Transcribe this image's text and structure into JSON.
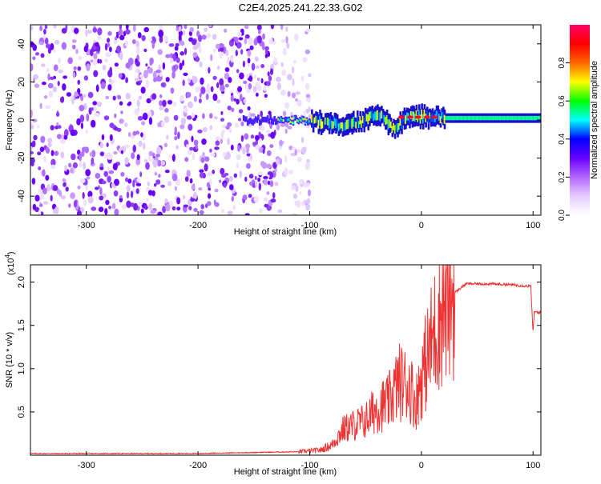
{
  "figure": {
    "title": "C2E4.2025.241.22.33.G02"
  },
  "chart_data": [
    {
      "type": "heatmap",
      "title": "C2E4.2025.241.22.33.G02",
      "xlabel": "Height of straight line (km)",
      "ylabel": "Frequency (Hz)",
      "xlim": [
        -350,
        107
      ],
      "ylim": [
        -50,
        50
      ],
      "x_ticks": [
        -300,
        -200,
        -100,
        0,
        100
      ],
      "y_ticks": [
        -40,
        -20,
        0,
        20,
        40
      ],
      "colorbar": {
        "label": "Normalized spectral amplitude",
        "range": [
          0.0,
          1.0
        ],
        "ticks": [
          "0.0",
          "0.2",
          "0.4",
          "0.6",
          "0.8"
        ],
        "colors": [
          "#ffffff",
          "#e6ccff",
          "#b366ff",
          "#6600ff",
          "#0000ff",
          "#00ffff",
          "#00ff00",
          "#ffff00",
          "#ff6600",
          "#ff0000",
          "#ff0066"
        ]
      },
      "regions": [
        {
          "x_range": [
            -350,
            -130
          ],
          "description": "broadband purple noise",
          "amplitude": 0.08
        },
        {
          "x_range": [
            -130,
            -100
          ],
          "description": "sparse faint noise",
          "amplitude": 0.03
        },
        {
          "x_range": [
            -100,
            107
          ],
          "description": "narrow band near 0 Hz",
          "amplitude": 0.5
        }
      ],
      "band_center": [
        {
          "x": -160,
          "y": 0
        },
        {
          "x": -120,
          "y": 0
        },
        {
          "x": -90,
          "y": -1
        },
        {
          "x": -70,
          "y": -3
        },
        {
          "x": -50,
          "y": 0
        },
        {
          "x": -40,
          "y": 4
        },
        {
          "x": -25,
          "y": -5
        },
        {
          "x": -15,
          "y": 1
        },
        {
          "x": 0,
          "y": 2
        },
        {
          "x": 20,
          "y": 1
        },
        {
          "x": 107,
          "y": 1
        }
      ]
    },
    {
      "type": "line",
      "xlabel": "Height of straight line (km)",
      "ylabel": "SNR (10 * v/v)",
      "y_multiplier": "(x10",
      "y_multiplier_exp": "4",
      "y_multiplier_close": ")",
      "xlim": [
        -350,
        107
      ],
      "ylim": [
        0,
        2.2
      ],
      "x_ticks": [
        -300,
        -200,
        -100,
        0,
        100
      ],
      "y_ticks": [
        0.5,
        1.0,
        1.5,
        2.0
      ],
      "series": [
        {
          "color": "#ee3333",
          "x": [
            -350,
            -200,
            -110,
            -100,
            -90,
            -80,
            -70,
            -60,
            -50,
            -40,
            -30,
            -20,
            -10,
            -5,
            0,
            10,
            20,
            30,
            40,
            60,
            80,
            98,
            100,
            101,
            102,
            107
          ],
          "y": [
            0.02,
            0.02,
            0.04,
            0.05,
            0.06,
            0.12,
            0.3,
            0.35,
            0.4,
            0.55,
            0.6,
            0.85,
            0.8,
            0.6,
            0.9,
            1.35,
            1.75,
            1.88,
            1.98,
            1.98,
            1.97,
            1.95,
            1.4,
            1.66,
            1.65,
            1.65
          ]
        }
      ]
    }
  ]
}
